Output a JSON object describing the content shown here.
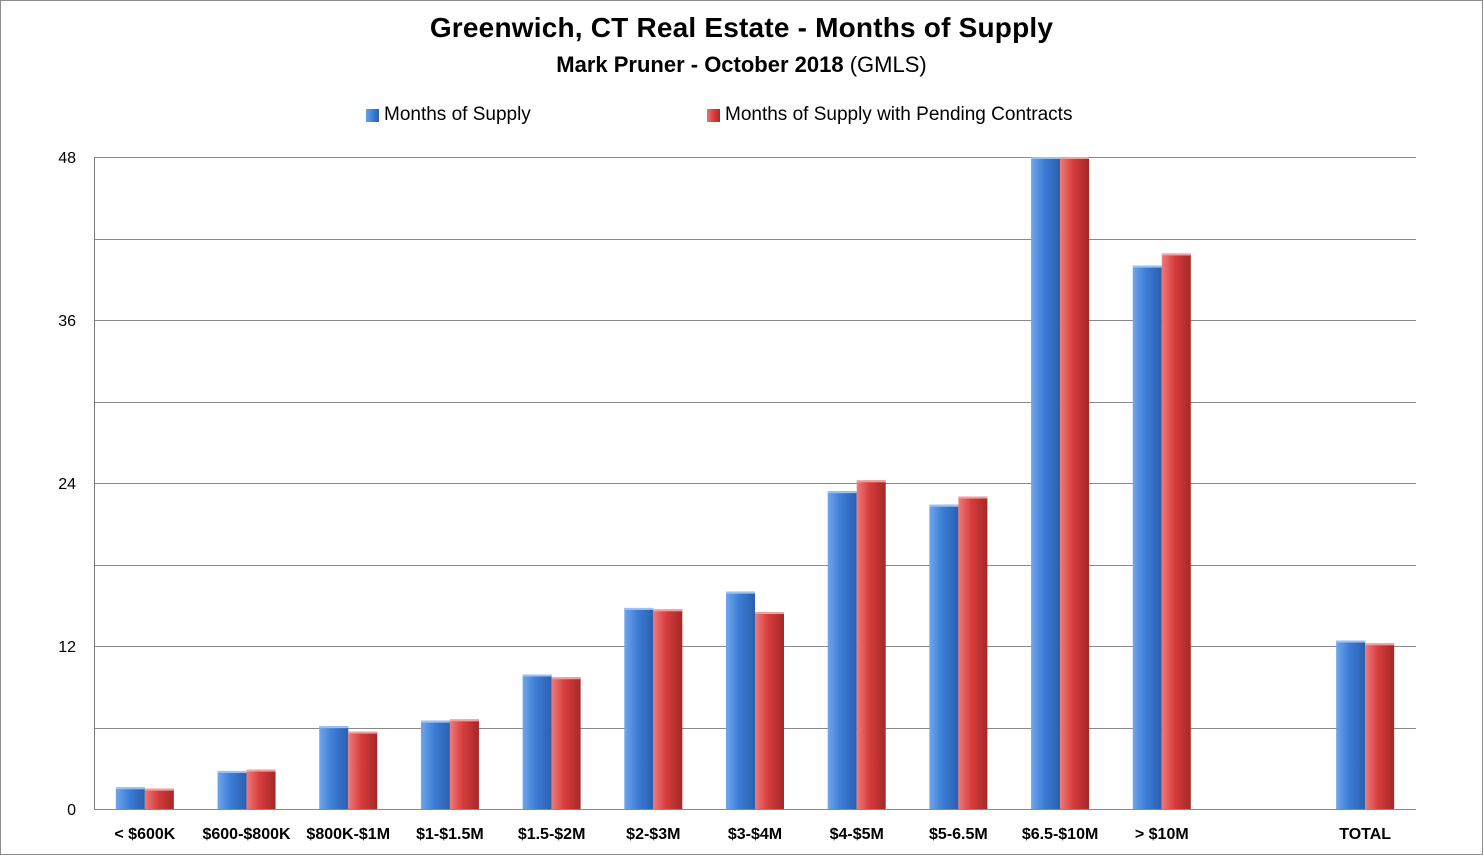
{
  "chart_data": {
    "type": "bar",
    "title": "Greenwich, CT Real Estate - Months of Supply",
    "subtitle_bold": "Mark Pruner -  October 2018",
    "subtitle_regular": "(GMLS)",
    "xlabel": "",
    "ylabel": "",
    "ylim": [
      0,
      48
    ],
    "yticks": [
      "0",
      "12",
      "24",
      "36",
      "48"
    ],
    "grid": true,
    "legend_position": "top-center",
    "categories": [
      "< $600K",
      "$600-$800K",
      "$800K-$1M",
      "$1-$1.5M",
      "$1.5-$2M",
      "$2-$3M",
      "$3-$4M",
      "$4-$5M",
      "$5-6.5M",
      "$6.5-$10M",
      "> $10M",
      "",
      "TOTAL"
    ],
    "series": [
      {
        "name": "Months of Supply",
        "color": "#3c7dd6",
        "values": [
          1.6,
          2.8,
          6.1,
          6.5,
          9.9,
          14.8,
          16.0,
          23.4,
          22.4,
          48,
          40.0,
          null,
          12.4
        ]
      },
      {
        "name": "Months of Supply with Pending Contracts",
        "color": "#d63c3c",
        "values": [
          1.5,
          2.9,
          5.7,
          6.6,
          9.7,
          14.7,
          14.5,
          24.2,
          23.0,
          48,
          40.9,
          null,
          12.2
        ]
      }
    ]
  }
}
